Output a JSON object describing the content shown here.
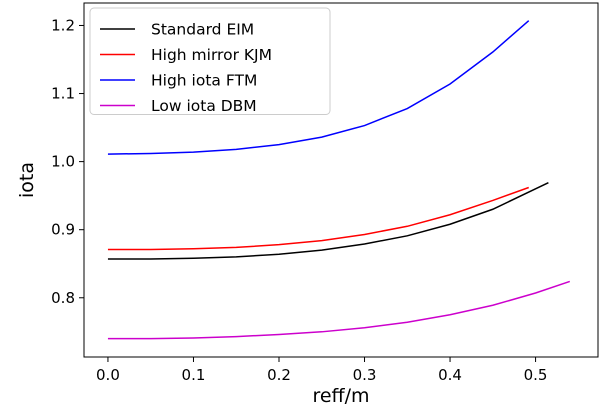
{
  "chart_data": {
    "type": "line",
    "title": "",
    "xlabel": "reff/m",
    "ylabel": "iota",
    "xlim": [
      -0.028,
      0.573
    ],
    "ylim": [
      0.713,
      1.233
    ],
    "xticks": [
      0.0,
      0.1,
      0.2,
      0.3,
      0.4,
      0.5
    ],
    "xtick_labels": [
      "0.0",
      "0.1",
      "0.2",
      "0.3",
      "0.4",
      "0.5"
    ],
    "yticks": [
      0.8,
      0.9,
      1.0,
      1.1,
      1.2
    ],
    "ytick_labels": [
      "0.8",
      "0.9",
      "1.0",
      "1.1",
      "1.2"
    ],
    "grid": false,
    "legend": {
      "position": "top-left",
      "frame": true
    },
    "series": [
      {
        "name": "Standard EIM",
        "color": "#000000",
        "x": [
          0.0,
          0.05,
          0.1,
          0.15,
          0.2,
          0.25,
          0.3,
          0.35,
          0.4,
          0.45,
          0.5,
          0.515
        ],
        "y": [
          0.857,
          0.857,
          0.858,
          0.86,
          0.864,
          0.87,
          0.879,
          0.891,
          0.908,
          0.93,
          0.96,
          0.969
        ]
      },
      {
        "name": "High mirror KJM",
        "color": "#ff0000",
        "x": [
          0.0,
          0.05,
          0.1,
          0.15,
          0.2,
          0.25,
          0.3,
          0.35,
          0.4,
          0.45,
          0.492
        ],
        "y": [
          0.871,
          0.871,
          0.872,
          0.874,
          0.878,
          0.884,
          0.893,
          0.905,
          0.922,
          0.943,
          0.962
        ]
      },
      {
        "name": "High iota FTM",
        "color": "#0000ff",
        "x": [
          0.0,
          0.05,
          0.1,
          0.15,
          0.2,
          0.25,
          0.3,
          0.35,
          0.4,
          0.45,
          0.492
        ],
        "y": [
          1.011,
          1.012,
          1.014,
          1.018,
          1.025,
          1.036,
          1.053,
          1.078,
          1.114,
          1.161,
          1.207
        ]
      },
      {
        "name": "Low iota DBM",
        "color": "#cc00cc",
        "x": [
          0.0,
          0.05,
          0.1,
          0.15,
          0.2,
          0.25,
          0.3,
          0.35,
          0.4,
          0.45,
          0.5,
          0.54
        ],
        "y": [
          0.74,
          0.74,
          0.741,
          0.743,
          0.746,
          0.75,
          0.756,
          0.764,
          0.775,
          0.789,
          0.807,
          0.824
        ]
      }
    ]
  }
}
